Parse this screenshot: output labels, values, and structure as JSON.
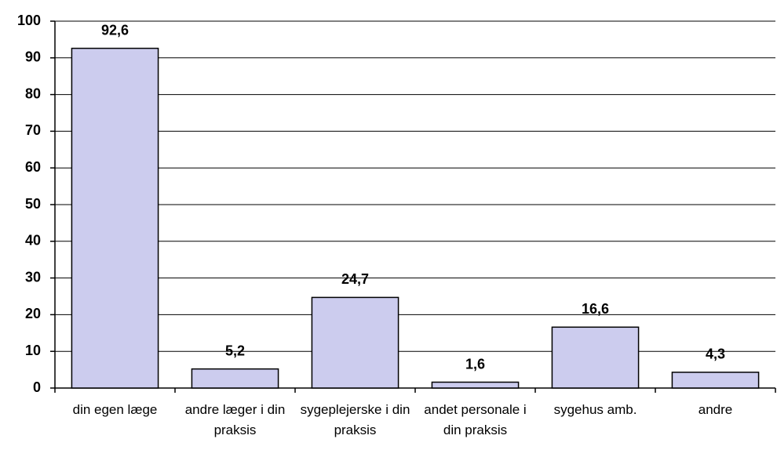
{
  "chart_data": {
    "type": "bar",
    "categories": [
      "din egen læge",
      "andre læger i din praksis",
      "sygeplejerske i din praksis",
      "andet personale i din praksis",
      "sygehus amb.",
      "andre"
    ],
    "values": [
      92.6,
      5.2,
      24.7,
      1.6,
      16.6,
      4.3
    ],
    "value_labels": [
      "92,6",
      "5,2",
      "24,7",
      "1,6",
      "16,6",
      "4,3"
    ],
    "color": "#ccccee",
    "ylim": [
      0,
      100
    ],
    "yticks": [
      0,
      10,
      20,
      30,
      40,
      50,
      60,
      70,
      80,
      90,
      100
    ],
    "grid": true
  }
}
